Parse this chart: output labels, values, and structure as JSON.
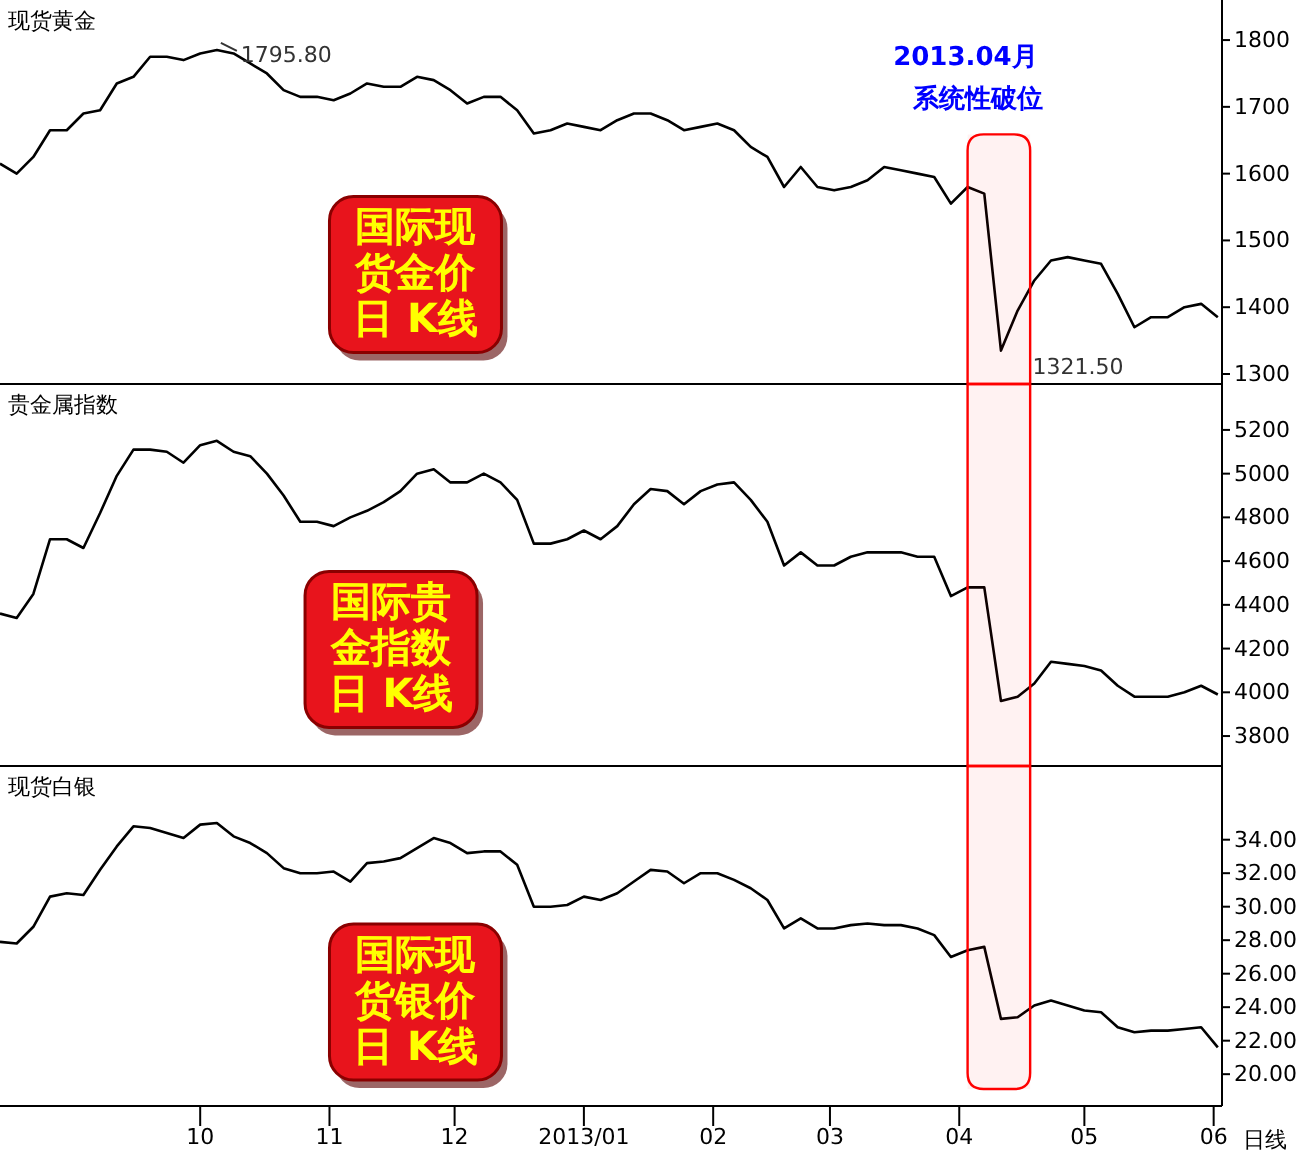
{
  "chart_data": [
    {
      "type": "line",
      "title": "现货黄金",
      "x": [
        "2012-08-14",
        "2012-08-18",
        "2012-08-22",
        "2012-08-26",
        "2012-08-30",
        "2012-09-03",
        "2012-09-07",
        "2012-09-11",
        "2012-09-15",
        "2012-09-19",
        "2012-09-23",
        "2012-09-27",
        "2012-10-01",
        "2012-10-05",
        "2012-10-09",
        "2012-10-13",
        "2012-10-17",
        "2012-10-21",
        "2012-10-25",
        "2012-10-29",
        "2012-11-02",
        "2012-11-06",
        "2012-11-10",
        "2012-11-14",
        "2012-11-18",
        "2012-11-22",
        "2012-11-26",
        "2012-11-30",
        "2012-12-04",
        "2012-12-08",
        "2012-12-12",
        "2012-12-16",
        "2012-12-20",
        "2012-12-24",
        "2012-12-28",
        "2013-01-01",
        "2013-01-05",
        "2013-01-09",
        "2013-01-13",
        "2013-01-17",
        "2013-01-21",
        "2013-01-25",
        "2013-01-29",
        "2013-02-02",
        "2013-02-06",
        "2013-02-10",
        "2013-02-14",
        "2013-02-18",
        "2013-02-22",
        "2013-02-26",
        "2013-03-02",
        "2013-03-06",
        "2013-03-10",
        "2013-03-14",
        "2013-03-18",
        "2013-03-22",
        "2013-03-26",
        "2013-03-30",
        "2013-04-03",
        "2013-04-07",
        "2013-04-11",
        "2013-04-15",
        "2013-04-19",
        "2013-04-23",
        "2013-04-27",
        "2013-05-01",
        "2013-05-05",
        "2013-05-09",
        "2013-05-13",
        "2013-05-17",
        "2013-05-21",
        "2013-05-25",
        "2013-05-29",
        "2013-06-02"
      ],
      "series": [
        {
          "color": "#000000",
          "values": [
            1615,
            1600,
            1625,
            1665,
            1665,
            1690,
            1695,
            1735,
            1745,
            1775,
            1775,
            1770,
            1780,
            1785,
            1780,
            1765,
            1750,
            1725,
            1715,
            1715,
            1710,
            1720,
            1735,
            1730,
            1730,
            1745,
            1740,
            1725,
            1705,
            1715,
            1715,
            1695,
            1660,
            1665,
            1675,
            1670,
            1665,
            1680,
            1690,
            1690,
            1680,
            1665,
            1670,
            1675,
            1665,
            1640,
            1625,
            1580,
            1610,
            1580,
            1575,
            1580,
            1590,
            1610,
            1605,
            1600,
            1595,
            1555,
            1580,
            1570,
            1335,
            1395,
            1440,
            1470,
            1475,
            1470,
            1465,
            1420,
            1370,
            1385,
            1385,
            1400,
            1405,
            1385
          ]
        }
      ],
      "xlim": [
        "2012-08-14",
        "2013-06-03"
      ],
      "ylim": [
        1285,
        1860
      ],
      "yticks": [
        1300,
        1400,
        1500,
        1600,
        1700,
        1800
      ],
      "tick_labels": "y",
      "grid": false,
      "marker": "none",
      "bands": [
        {
          "axis": "x",
          "from": "2013-04-03",
          "to": "2013-04-18",
          "color": "#ff0000"
        }
      ],
      "annotations": [
        {
          "text": "1795.80",
          "x": "2012-10-05",
          "y": 1795.8
        },
        "1321.50",
        "2013.04月",
        "系统性破位",
        "国际现",
        "货金价",
        "日 K线"
      ]
    },
    {
      "type": "line",
      "title": "贵金属指数",
      "x": [
        "2012-08-14",
        "2012-08-18",
        "2012-08-22",
        "2012-08-26",
        "2012-08-30",
        "2012-09-03",
        "2012-09-07",
        "2012-09-11",
        "2012-09-15",
        "2012-09-19",
        "2012-09-23",
        "2012-09-27",
        "2012-10-01",
        "2012-10-05",
        "2012-10-09",
        "2012-10-13",
        "2012-10-17",
        "2012-10-21",
        "2012-10-25",
        "2012-10-29",
        "2012-11-02",
        "2012-11-06",
        "2012-11-10",
        "2012-11-14",
        "2012-11-18",
        "2012-11-22",
        "2012-11-26",
        "2012-11-30",
        "2012-12-04",
        "2012-12-08",
        "2012-12-12",
        "2012-12-16",
        "2012-12-20",
        "2012-12-24",
        "2012-12-28",
        "2013-01-01",
        "2013-01-05",
        "2013-01-09",
        "2013-01-13",
        "2013-01-17",
        "2013-01-21",
        "2013-01-25",
        "2013-01-29",
        "2013-02-02",
        "2013-02-06",
        "2013-02-10",
        "2013-02-14",
        "2013-02-18",
        "2013-02-22",
        "2013-02-26",
        "2013-03-02",
        "2013-03-06",
        "2013-03-10",
        "2013-03-14",
        "2013-03-18",
        "2013-03-22",
        "2013-03-26",
        "2013-03-30",
        "2013-04-03",
        "2013-04-07",
        "2013-04-11",
        "2013-04-15",
        "2013-04-19",
        "2013-04-23",
        "2013-04-27",
        "2013-05-01",
        "2013-05-05",
        "2013-05-09",
        "2013-05-13",
        "2013-05-17",
        "2013-05-21",
        "2013-05-25",
        "2013-05-29",
        "2013-06-02"
      ],
      "series": [
        {
          "color": "#000000",
          "values": [
            4360,
            4340,
            4450,
            4700,
            4700,
            4660,
            4820,
            4990,
            5110,
            5110,
            5100,
            5050,
            5130,
            5150,
            5100,
            5080,
            5000,
            4900,
            4780,
            4780,
            4760,
            4800,
            4830,
            4870,
            4920,
            5000,
            5020,
            4960,
            4960,
            5000,
            4960,
            4880,
            4680,
            4680,
            4700,
            4740,
            4700,
            4760,
            4860,
            4930,
            4920,
            4860,
            4920,
            4950,
            4960,
            4880,
            4780,
            4580,
            4640,
            4580,
            4580,
            4620,
            4640,
            4640,
            4640,
            4620,
            4620,
            4440,
            4480,
            4480,
            3960,
            3980,
            4040,
            4140,
            4130,
            4120,
            4100,
            4030,
            3980,
            3980,
            3980,
            4000,
            4030,
            3990
          ]
        }
      ],
      "xlim": [
        "2012-08-14",
        "2013-06-03"
      ],
      "ylim": [
        3663,
        5410
      ],
      "yticks": [
        3800,
        4000,
        4200,
        4400,
        4600,
        4800,
        5000,
        5200
      ],
      "tick_labels": "y",
      "grid": false,
      "marker": "none",
      "bands": [
        {
          "axis": "x",
          "from": "2013-04-03",
          "to": "2013-04-18",
          "color": "#ff0000"
        }
      ],
      "annotations": [
        "国际贵",
        "金指数",
        "日 K线"
      ]
    },
    {
      "type": "line",
      "title": "现货白银",
      "x": [
        "2012-08-14",
        "2012-08-18",
        "2012-08-22",
        "2012-08-26",
        "2012-08-30",
        "2012-09-03",
        "2012-09-07",
        "2012-09-11",
        "2012-09-15",
        "2012-09-19",
        "2012-09-23",
        "2012-09-27",
        "2012-10-01",
        "2012-10-05",
        "2012-10-09",
        "2012-10-13",
        "2012-10-17",
        "2012-10-21",
        "2012-10-25",
        "2012-10-29",
        "2012-11-02",
        "2012-11-06",
        "2012-11-10",
        "2012-11-14",
        "2012-11-18",
        "2012-11-22",
        "2012-11-26",
        "2012-11-30",
        "2012-12-04",
        "2012-12-08",
        "2012-12-12",
        "2012-12-16",
        "2012-12-20",
        "2012-12-24",
        "2012-12-28",
        "2013-01-01",
        "2013-01-05",
        "2013-01-09",
        "2013-01-13",
        "2013-01-17",
        "2013-01-21",
        "2013-01-25",
        "2013-01-29",
        "2013-02-02",
        "2013-02-06",
        "2013-02-10",
        "2013-02-14",
        "2013-02-18",
        "2013-02-22",
        "2013-02-26",
        "2013-03-02",
        "2013-03-06",
        "2013-03-10",
        "2013-03-14",
        "2013-03-18",
        "2013-03-22",
        "2013-03-26",
        "2013-03-30",
        "2013-04-03",
        "2013-04-07",
        "2013-04-11",
        "2013-04-15",
        "2013-04-19",
        "2013-04-23",
        "2013-04-27",
        "2013-05-01",
        "2013-05-05",
        "2013-05-09",
        "2013-05-13",
        "2013-05-17",
        "2013-05-21",
        "2013-05-25",
        "2013-05-29",
        "2013-06-02"
      ],
      "series": [
        {
          "color": "#000000",
          "values": [
            27.9,
            27.8,
            28.8,
            30.6,
            30.8,
            30.7,
            32.2,
            33.6,
            34.8,
            34.7,
            34.4,
            34.1,
            34.9,
            35.0,
            34.2,
            33.8,
            33.2,
            32.3,
            32.0,
            32.0,
            32.1,
            31.5,
            32.6,
            32.7,
            32.9,
            33.5,
            34.1,
            33.8,
            33.2,
            33.3,
            33.3,
            32.5,
            30.0,
            30.0,
            30.1,
            30.6,
            30.4,
            30.8,
            31.5,
            32.2,
            32.1,
            31.4,
            32.0,
            32.0,
            31.6,
            31.1,
            30.4,
            28.7,
            29.3,
            28.7,
            28.7,
            28.9,
            29.0,
            28.9,
            28.9,
            28.7,
            28.3,
            27.0,
            27.4,
            27.6,
            23.3,
            23.4,
            24.1,
            24.4,
            24.1,
            23.8,
            23.7,
            22.8,
            22.5,
            22.6,
            22.6,
            22.7,
            22.8,
            21.6
          ]
        }
      ],
      "xlim": [
        "2012-08-14",
        "2013-06-03"
      ],
      "xticks": [
        {
          "value": "2012-10-01",
          "label": "10"
        },
        {
          "value": "2012-11-01",
          "label": "11"
        },
        {
          "value": "2012-12-01",
          "label": "12"
        },
        {
          "value": "2013-01-01",
          "label": "2013/01"
        },
        {
          "value": "2013-02-01",
          "label": "02"
        },
        {
          "value": "2013-03-01",
          "label": "03"
        },
        {
          "value": "2013-04-01",
          "label": "04"
        },
        {
          "value": "2013-05-01",
          "label": "05"
        },
        {
          "value": "2013-06-01",
          "label": "06"
        }
      ],
      "ylim": [
        18.1,
        38.4
      ],
      "yticks": [
        {
          "value": 20,
          "label": "20.00"
        },
        {
          "value": 22,
          "label": "22.00"
        },
        {
          "value": 24,
          "label": "24.00"
        },
        {
          "value": 26,
          "label": "26.00"
        },
        {
          "value": 28,
          "label": "28.00"
        },
        {
          "value": 30,
          "label": "30.00"
        },
        {
          "value": 32,
          "label": "32.00"
        },
        {
          "value": 34,
          "label": "34.00"
        }
      ],
      "grid": false,
      "marker": "none",
      "bands": [
        {
          "axis": "x",
          "from": "2013-04-03",
          "to": "2013-04-18",
          "color": "#ff0000"
        }
      ],
      "annotations": [
        "国际现",
        "货银价",
        "日 K线",
        "日线"
      ]
    }
  ]
}
